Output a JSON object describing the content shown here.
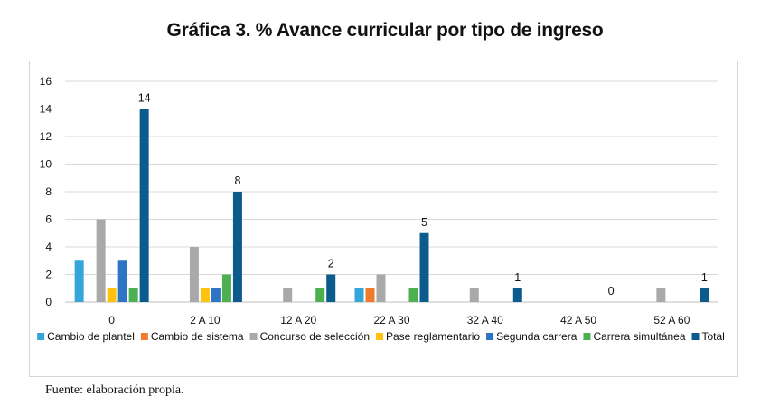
{
  "title": "Gráfica 3. % Avance curricular por tipo de ingreso",
  "source": "Fuente: elaboración propia.",
  "chart_data": {
    "type": "bar",
    "categories": [
      "0",
      "2 A 10",
      "12 A 20",
      "22 A 30",
      "32 A 40",
      "42 A 50",
      "52 A 60"
    ],
    "ylim": [
      0,
      16
    ],
    "yticks": [
      0,
      2,
      4,
      6,
      8,
      10,
      12,
      14,
      16
    ],
    "grid": true,
    "legend_position": "bottom",
    "series": [
      {
        "name": "Cambio de plantel",
        "color": "#35a6d9",
        "values": [
          3,
          0,
          0,
          1,
          0,
          0,
          0
        ]
      },
      {
        "name": "Cambio de sistema",
        "color": "#f07b2c",
        "values": [
          0,
          0,
          0,
          1,
          0,
          0,
          0
        ]
      },
      {
        "name": "Concurso de selección",
        "color": "#a9a9a9",
        "values": [
          6,
          4,
          1,
          2,
          1,
          0,
          1
        ]
      },
      {
        "name": "Pase reglamentario",
        "color": "#ffc20e",
        "values": [
          1,
          1,
          0,
          0,
          0,
          0,
          0
        ]
      },
      {
        "name": "Segunda carrera",
        "color": "#2e74c4",
        "values": [
          3,
          1,
          0,
          0,
          0,
          0,
          0
        ]
      },
      {
        "name": "Carrera simultánea",
        "color": "#4caf50",
        "values": [
          1,
          2,
          1,
          1,
          0,
          0,
          0
        ]
      },
      {
        "name": "Total",
        "color": "#0b5c8c",
        "values": [
          14,
          8,
          2,
          5,
          1,
          0,
          1
        ]
      }
    ],
    "data_labels_series": "Total",
    "data_labels": [
      "14",
      "8",
      "2",
      "5",
      "1",
      "0",
      "1"
    ]
  }
}
